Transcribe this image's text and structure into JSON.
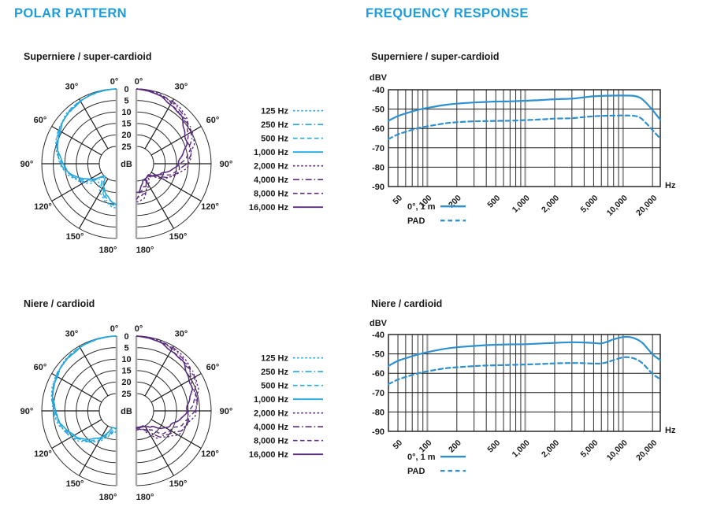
{
  "page": {
    "headings": {
      "left": "POLAR PATTERN",
      "right": "FREQUENCY RESPONSE"
    },
    "accent_color": "#1E9CD9",
    "text_color": "#1A1A1A"
  },
  "colors": {
    "polar_low": "#24A7DE",
    "polar_high": "#5C2D82",
    "fr_line": "#2D90D0",
    "grid_minor": "#2B2B2B",
    "grid_decade": "#9E9E9E",
    "polar_edge": "#A8A8A8"
  },
  "chart_data": [
    {
      "type": "polar",
      "title": "Superniere / super-cardioid",
      "unit_label": "dB",
      "radial_ticks_db": [
        0,
        5,
        10,
        15,
        20,
        25
      ],
      "angle_labels": [
        "0°",
        "30°",
        "60°",
        "90°",
        "120°",
        "150°",
        "180°"
      ],
      "angles_deg": [
        0,
        15,
        30,
        45,
        60,
        75,
        90,
        105,
        120,
        135,
        150,
        165,
        180
      ],
      "series": [
        {
          "name": "125 Hz",
          "side": "left",
          "line": "dotted",
          "att_db": [
            0,
            0.3,
            1.0,
            2.0,
            3.4,
            5.4,
            8.0,
            11.5,
            16.0,
            21.0,
            18.5,
            15.0,
            13.5
          ]
        },
        {
          "name": "250 Hz",
          "side": "left",
          "line": "dashdot",
          "att_db": [
            0,
            0.3,
            1.0,
            2.1,
            3.6,
            5.6,
            8.3,
            12.0,
            17.0,
            23.0,
            19.5,
            16.0,
            14.0
          ]
        },
        {
          "name": "500 Hz",
          "side": "left",
          "line": "dashed",
          "att_db": [
            0,
            0.4,
            1.1,
            2.2,
            3.8,
            5.9,
            8.8,
            12.5,
            18.0,
            24.5,
            20.5,
            17.0,
            14.5
          ]
        },
        {
          "name": "1,000 Hz",
          "side": "left",
          "line": "solid",
          "att_db": [
            0,
            0.4,
            1.2,
            2.3,
            4.0,
            6.2,
            9.2,
            13.0,
            19.0,
            25.0,
            21.5,
            17.5,
            15.0
          ]
        },
        {
          "name": "2,000 Hz",
          "side": "right",
          "line": "dotted",
          "att_db": [
            0,
            0.5,
            1.4,
            2.8,
            4.8,
            7.0,
            10.0,
            14.0,
            20.0,
            25.0,
            22.0,
            18.0,
            16.0
          ]
        },
        {
          "name": "4,000 Hz",
          "side": "right",
          "line": "dashdot",
          "att_db": [
            0,
            0.6,
            1.7,
            3.2,
            5.4,
            7.8,
            11.0,
            15.0,
            21.0,
            25.0,
            23.0,
            19.5,
            17.0
          ]
        },
        {
          "name": "8,000 Hz",
          "side": "right",
          "line": "dashed",
          "att_db": [
            0,
            0.8,
            2.1,
            3.9,
            6.3,
            9.0,
            12.5,
            16.5,
            22.0,
            25.0,
            24.0,
            21.0,
            18.0
          ]
        },
        {
          "name": "16,000 Hz",
          "side": "right",
          "line": "solid",
          "att_db": [
            0,
            1.0,
            2.6,
            4.8,
            7.8,
            11.0,
            14.5,
            18.5,
            23.0,
            25.0,
            25.0,
            23.0,
            20.0
          ]
        }
      ]
    },
    {
      "type": "polar",
      "title": "Niere / cardioid",
      "unit_label": "dB",
      "radial_ticks_db": [
        0,
        5,
        10,
        15,
        20,
        25
      ],
      "angle_labels": [
        "0°",
        "30°",
        "60°",
        "90°",
        "120°",
        "150°",
        "180°"
      ],
      "angles_deg": [
        0,
        15,
        30,
        45,
        60,
        75,
        90,
        105,
        120,
        135,
        150,
        165,
        180
      ],
      "series": [
        {
          "name": "125 Hz",
          "side": "left",
          "line": "dotted",
          "att_db": [
            0,
            0.2,
            0.6,
            1.3,
            2.2,
            3.4,
            5.0,
            7.0,
            9.8,
            13.3,
            17.5,
            21.5,
            24.0
          ]
        },
        {
          "name": "250 Hz",
          "side": "left",
          "line": "dashdot",
          "att_db": [
            0,
            0.2,
            0.65,
            1.35,
            2.3,
            3.6,
            5.3,
            7.3,
            10.2,
            13.8,
            18.0,
            22.5,
            25.0
          ]
        },
        {
          "name": "500 Hz",
          "side": "left",
          "line": "dashed",
          "att_db": [
            0,
            0.25,
            0.7,
            1.4,
            2.4,
            3.8,
            5.6,
            7.7,
            10.7,
            14.3,
            18.8,
            23.5,
            25.0
          ]
        },
        {
          "name": "1,000 Hz",
          "side": "left",
          "line": "solid",
          "att_db": [
            0,
            0.25,
            0.75,
            1.5,
            2.5,
            4.0,
            5.9,
            8.1,
            11.2,
            15.0,
            19.5,
            24.5,
            25.0
          ]
        },
        {
          "name": "2,000 Hz",
          "side": "right",
          "line": "dotted",
          "att_db": [
            0,
            0.35,
            1.0,
            2.0,
            3.3,
            4.9,
            6.8,
            9.2,
            12.3,
            16.0,
            20.5,
            24.5,
            25.0
          ]
        },
        {
          "name": "4,000 Hz",
          "side": "right",
          "line": "dashdot",
          "att_db": [
            0,
            0.45,
            1.25,
            2.3,
            3.7,
            5.4,
            7.4,
            10.0,
            13.3,
            17.3,
            21.5,
            25.0,
            25.0
          ]
        },
        {
          "name": "8,000 Hz",
          "side": "right",
          "line": "dashed",
          "att_db": [
            0,
            0.55,
            1.6,
            2.9,
            4.6,
            6.6,
            8.8,
            11.8,
            15.3,
            19.3,
            23.5,
            25.0,
            25.0
          ]
        },
        {
          "name": "16,000 Hz",
          "side": "right",
          "line": "solid",
          "att_db": [
            0,
            0.85,
            2.1,
            3.7,
            5.7,
            8.2,
            10.8,
            14.2,
            18.2,
            22.3,
            25.0,
            25.0,
            25.0
          ]
        }
      ]
    },
    {
      "type": "line",
      "title": "Superniere / super-cardioid",
      "ylabel": "dBV",
      "xlabel": "Hz",
      "ylim": [
        -90,
        -40
      ],
      "yticks": [
        -40,
        -50,
        -60,
        -70,
        -80,
        -90
      ],
      "xrange_hz": [
        40,
        24000
      ],
      "xticks_labeled": [
        50,
        100,
        200,
        500,
        1000,
        2000,
        5000,
        10000,
        20000
      ],
      "xtick_labels": [
        "50",
        "100",
        "200",
        "500",
        "1,000",
        "2,000",
        "5,000",
        "10,000",
        "20,000"
      ],
      "xticks_minor": [
        60,
        70,
        80,
        90,
        300,
        400,
        600,
        700,
        800,
        900,
        3000,
        4000,
        6000,
        7000,
        8000,
        9000
      ],
      "decade_lines": [
        100,
        1000,
        10000
      ],
      "series": [
        {
          "name": "0°, 1 m",
          "line": "solid",
          "points": [
            [
              40,
              -56.0
            ],
            [
              50,
              -53.6
            ],
            [
              63,
              -51.9
            ],
            [
              80,
              -50.4
            ],
            [
              100,
              -49.4
            ],
            [
              150,
              -47.9
            ],
            [
              200,
              -47.2
            ],
            [
              300,
              -46.6
            ],
            [
              400,
              -46.3
            ],
            [
              500,
              -46.1
            ],
            [
              700,
              -46.0
            ],
            [
              1000,
              -45.7
            ],
            [
              1500,
              -45.3
            ],
            [
              2000,
              -44.9
            ],
            [
              3000,
              -44.6
            ],
            [
              4000,
              -43.9
            ],
            [
              5000,
              -43.4
            ],
            [
              7000,
              -43.1
            ],
            [
              10000,
              -43.0
            ],
            [
              13000,
              -43.2
            ],
            [
              15000,
              -44.2
            ],
            [
              17000,
              -46.5
            ],
            [
              20000,
              -50.5
            ],
            [
              24000,
              -55.5
            ]
          ]
        },
        {
          "name": "PAD",
          "line": "dashed",
          "points": [
            [
              40,
              -65.5
            ],
            [
              50,
              -63.1
            ],
            [
              63,
              -61.4
            ],
            [
              80,
              -59.9
            ],
            [
              100,
              -58.9
            ],
            [
              150,
              -57.4
            ],
            [
              200,
              -56.8
            ],
            [
              300,
              -56.3
            ],
            [
              400,
              -56.2
            ],
            [
              500,
              -56.1
            ],
            [
              700,
              -56.0
            ],
            [
              1000,
              -55.7
            ],
            [
              1500,
              -55.3
            ],
            [
              2000,
              -54.9
            ],
            [
              3000,
              -54.7
            ],
            [
              4000,
              -54.1
            ],
            [
              5000,
              -53.7
            ],
            [
              7000,
              -53.4
            ],
            [
              10000,
              -53.3
            ],
            [
              13000,
              -53.5
            ],
            [
              15000,
              -54.5
            ],
            [
              17000,
              -57.0
            ],
            [
              20000,
              -60.8
            ],
            [
              24000,
              -65.3
            ]
          ]
        }
      ]
    },
    {
      "type": "line",
      "title": "Niere / cardioid",
      "ylabel": "dBV",
      "xlabel": "Hz",
      "ylim": [
        -90,
        -40
      ],
      "yticks": [
        -40,
        -50,
        -60,
        -70,
        -80,
        -90
      ],
      "xrange_hz": [
        40,
        24000
      ],
      "xticks_labeled": [
        50,
        100,
        200,
        500,
        1000,
        2000,
        5000,
        10000,
        20000
      ],
      "xtick_labels": [
        "50",
        "100",
        "200",
        "500",
        "1,000",
        "2,000",
        "5,000",
        "10,000",
        "20,000"
      ],
      "xticks_minor": [
        60,
        70,
        80,
        90,
        300,
        400,
        600,
        700,
        800,
        900,
        3000,
        4000,
        6000,
        7000,
        8000,
        9000
      ],
      "decade_lines": [
        100,
        1000,
        10000
      ],
      "series": [
        {
          "name": "0°, 1 m",
          "line": "solid",
          "points": [
            [
              40,
              -56.2
            ],
            [
              50,
              -53.6
            ],
            [
              63,
              -51.9
            ],
            [
              80,
              -50.3
            ],
            [
              100,
              -49.1
            ],
            [
              150,
              -47.4
            ],
            [
              200,
              -46.6
            ],
            [
              300,
              -45.9
            ],
            [
              400,
              -45.5
            ],
            [
              500,
              -45.3
            ],
            [
              700,
              -45.1
            ],
            [
              1000,
              -45.0
            ],
            [
              1500,
              -44.6
            ],
            [
              2000,
              -44.3
            ],
            [
              3000,
              -44.0
            ],
            [
              4000,
              -44.1
            ],
            [
              5000,
              -44.4
            ],
            [
              6000,
              -44.6
            ],
            [
              7000,
              -43.6
            ],
            [
              8000,
              -42.5
            ],
            [
              10000,
              -41.3
            ],
            [
              12000,
              -41.4
            ],
            [
              14000,
              -42.6
            ],
            [
              16000,
              -44.6
            ],
            [
              20000,
              -50.2
            ],
            [
              24000,
              -53.2
            ]
          ]
        },
        {
          "name": "PAD",
          "line": "dashed",
          "points": [
            [
              40,
              -65.6
            ],
            [
              50,
              -63.3
            ],
            [
              63,
              -61.6
            ],
            [
              80,
              -60.1
            ],
            [
              100,
              -59.0
            ],
            [
              150,
              -57.5
            ],
            [
              200,
              -56.9
            ],
            [
              300,
              -56.3
            ],
            [
              400,
              -56.0
            ],
            [
              500,
              -55.9
            ],
            [
              700,
              -55.7
            ],
            [
              1000,
              -55.5
            ],
            [
              1500,
              -55.2
            ],
            [
              2000,
              -54.9
            ],
            [
              3000,
              -54.7
            ],
            [
              4000,
              -54.8
            ],
            [
              5000,
              -55.0
            ],
            [
              6000,
              -54.9
            ],
            [
              7000,
              -54.2
            ],
            [
              8000,
              -53.2
            ],
            [
              10000,
              -51.8
            ],
            [
              12000,
              -51.9
            ],
            [
              14000,
              -53.1
            ],
            [
              16000,
              -55.1
            ],
            [
              20000,
              -60.3
            ],
            [
              24000,
              -63.0
            ]
          ]
        }
      ]
    }
  ]
}
